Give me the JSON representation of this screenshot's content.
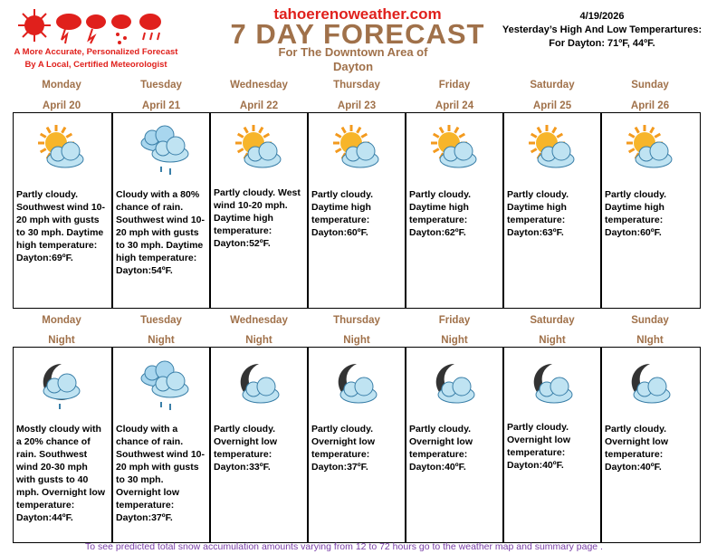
{
  "header": {
    "site": "tahoerenoweather.com",
    "title": "7 DAY FORECAST",
    "subtitle": "For The Downtown Area of Dayton",
    "tagline": [
      "A More Accurate, Personalized Forecast",
      "By A Local, Certified Meteorologist"
    ],
    "date": "4/19/2026",
    "yesterday_title": "Yesterday’s High And Low Temperartures:",
    "yesterday_values": "For Dayton: 71ºF,  44ºF."
  },
  "days": [
    {
      "day": "Monday",
      "date": "April 20",
      "text": "Partly cloudy. Southwest wind 10-20 mph with gusts to 30 mph. Daytime high temperature: Dayton:69ºF."
    },
    {
      "day": "Tuesday",
      "date": "April 21",
      "text": "Cloudy with a 80% chance of rain. Southwest wind 10-20 mph with gusts to 30 mph. Daytime high temperature: Dayton:54ºF."
    },
    {
      "day": "Wednesday",
      "date": "April 22",
      "text": "Partly cloudy. West wind 10-20 mph.  Daytime high temperature: Dayton:52ºF."
    },
    {
      "day": "Thursday",
      "date": "April 23",
      "text": "Partly cloudy. Daytime high temperature: Dayton:60ºF."
    },
    {
      "day": "Friday",
      "date": "April 24",
      "text": "Partly cloudy. Daytime high temperature: Dayton:62ºF."
    },
    {
      "day": "Saturday",
      "date": "April 25",
      "text": "Partly cloudy. Daytime high temperature: Dayton:63ºF."
    },
    {
      "day": "Sunday",
      "date": "April 26",
      "text": "Partly cloudy. Daytime high temperature: Dayton:60ºF."
    }
  ],
  "nights": [
    {
      "day": "Monday",
      "label": "Night",
      "text": "Mostly cloudy with a 20% chance of rain. Southwest wind 20-30 mph with gusts to 40 mph. Overnight low temperature: Dayton:44ºF."
    },
    {
      "day": "Tuesday",
      "label": "Night",
      "text": "Cloudy with a chance of rain. Southwest wind 10-20 mph with gusts to 30 mph. Overnight low temperature: Dayton:37ºF."
    },
    {
      "day": "Wednesday",
      "label": "Night",
      "text": "Partly cloudy. Overnight low temperature: Dayton:33ºF."
    },
    {
      "day": "Thursday",
      "label": "Night",
      "text": "Partly cloudy. Overnight low temperature: Dayton:37ºF."
    },
    {
      "day": "Friday",
      "label": "Night",
      "text": "Partly cloudy. Overnight low temperature: Dayton:40ºF."
    },
    {
      "day": "Saturday",
      "label": "Night",
      "text": "Partly cloudy. Overnight low temperature: Dayton:40ºF."
    },
    {
      "day": "Sunday",
      "label": "NIght",
      "text": "Partly cloudy. Overnight low temperature: Dayton:40ºF."
    }
  ],
  "footer": "To see predicted total snow accumulation amounts varying from 12 to 72 hours go to the weather map and summary page ."
}
